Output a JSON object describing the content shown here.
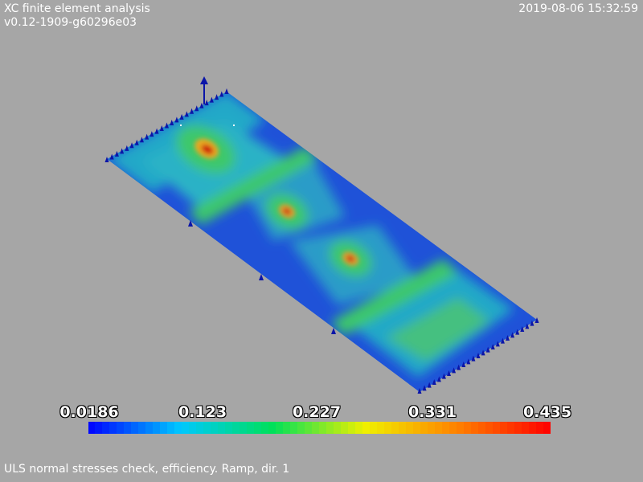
{
  "header": {
    "title": "XC finite element analysis",
    "version": "v0.12-1909-g60296e03",
    "timestamp": "2019-08-06 15:32:59"
  },
  "legend": {
    "labels": [
      "0.0186",
      "0.123",
      "0.227",
      "0.331",
      "0.435"
    ],
    "min": 0.0186,
    "max": 0.435,
    "segments": 64,
    "colormap": [
      "#0000ff",
      "#00c8ff",
      "#00e05a",
      "#f0f000",
      "#ff8000",
      "#ff0000"
    ]
  },
  "plate": {
    "base_color": "#1f52d8",
    "support_color": "#0b15a8",
    "hotspot_color": "#cc1a0a"
  },
  "caption": "ULS normal stresses check, efficiency. Ramp, dir. 1"
}
